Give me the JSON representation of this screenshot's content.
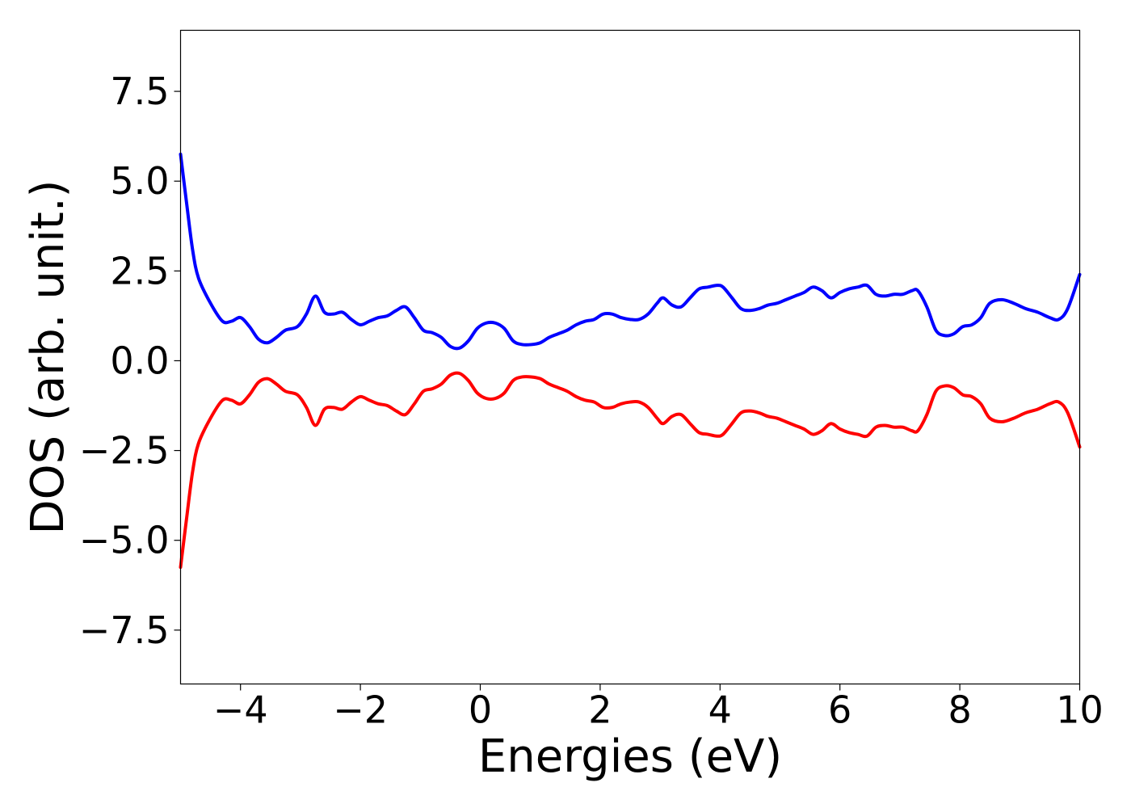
{
  "chart_data": {
    "type": "line",
    "title": "",
    "xlabel": "Energies (eV)",
    "ylabel": "DOS (arb. unit.)",
    "xlim": [
      -5,
      10
    ],
    "ylim": [
      -9,
      9.2
    ],
    "grid": false,
    "xticks": [
      -4,
      -2,
      0,
      2,
      4,
      6,
      8,
      10
    ],
    "xtick_labels": [
      "−4",
      "−2",
      "0",
      "2",
      "4",
      "6",
      "8",
      "10"
    ],
    "yticks": [
      -7.5,
      -5.0,
      -2.5,
      0.0,
      2.5,
      5.0,
      7.5
    ],
    "ytick_labels": [
      "−7.5",
      "−5.0",
      "−2.5",
      "0.0",
      "2.5",
      "5.0",
      "7.5"
    ],
    "series": [
      {
        "color": "#0000ff",
        "x": [
          -5.0,
          -4.9,
          -4.8,
          -4.7,
          -4.5,
          -4.3,
          -4.15,
          -4.0,
          -3.85,
          -3.7,
          -3.55,
          -3.4,
          -3.25,
          -3.05,
          -2.9,
          -2.75,
          -2.6,
          -2.45,
          -2.3,
          -2.15,
          -2.0,
          -1.85,
          -1.7,
          -1.55,
          -1.4,
          -1.25,
          -1.1,
          -0.95,
          -0.8,
          -0.65,
          -0.5,
          -0.35,
          -0.2,
          -0.05,
          0.1,
          0.25,
          0.4,
          0.55,
          0.7,
          0.85,
          1.0,
          1.15,
          1.3,
          1.45,
          1.6,
          1.75,
          1.9,
          2.05,
          2.2,
          2.35,
          2.5,
          2.65,
          2.8,
          2.95,
          3.05,
          3.2,
          3.35,
          3.5,
          3.65,
          3.8,
          3.95,
          4.05,
          4.2,
          4.35,
          4.5,
          4.65,
          4.8,
          4.95,
          5.1,
          5.25,
          5.4,
          5.55,
          5.7,
          5.85,
          6.0,
          6.15,
          6.3,
          6.45,
          6.6,
          6.75,
          6.9,
          7.05,
          7.2,
          7.3,
          7.45,
          7.6,
          7.75,
          7.9,
          8.05,
          8.2,
          8.35,
          8.5,
          8.7,
          8.9,
          9.1,
          9.3,
          9.5,
          9.65,
          9.8,
          10.0
        ],
        "y": [
          5.75,
          4.4,
          3.1,
          2.3,
          1.6,
          1.1,
          1.1,
          1.2,
          0.95,
          0.6,
          0.5,
          0.65,
          0.85,
          0.95,
          1.3,
          1.8,
          1.35,
          1.3,
          1.35,
          1.15,
          1.0,
          1.1,
          1.2,
          1.25,
          1.4,
          1.5,
          1.2,
          0.85,
          0.78,
          0.65,
          0.4,
          0.35,
          0.55,
          0.9,
          1.05,
          1.05,
          0.9,
          0.55,
          0.45,
          0.45,
          0.5,
          0.65,
          0.75,
          0.85,
          1.0,
          1.1,
          1.15,
          1.3,
          1.3,
          1.2,
          1.15,
          1.15,
          1.3,
          1.6,
          1.75,
          1.55,
          1.5,
          1.75,
          2.0,
          2.05,
          2.1,
          2.05,
          1.75,
          1.45,
          1.4,
          1.45,
          1.55,
          1.6,
          1.7,
          1.8,
          1.9,
          2.05,
          1.95,
          1.75,
          1.9,
          2.0,
          2.05,
          2.1,
          1.85,
          1.8,
          1.85,
          1.85,
          1.95,
          1.95,
          1.5,
          0.85,
          0.7,
          0.75,
          0.95,
          1.0,
          1.2,
          1.6,
          1.7,
          1.6,
          1.45,
          1.35,
          1.2,
          1.15,
          1.45,
          2.4
        ]
      },
      {
        "color": "#ff0000",
        "x": [
          -5.0,
          -4.9,
          -4.8,
          -4.7,
          -4.5,
          -4.3,
          -4.15,
          -4.0,
          -3.85,
          -3.7,
          -3.55,
          -3.4,
          -3.25,
          -3.05,
          -2.9,
          -2.75,
          -2.6,
          -2.45,
          -2.3,
          -2.15,
          -2.0,
          -1.85,
          -1.7,
          -1.55,
          -1.4,
          -1.25,
          -1.1,
          -0.95,
          -0.8,
          -0.65,
          -0.5,
          -0.35,
          -0.2,
          -0.05,
          0.1,
          0.25,
          0.4,
          0.55,
          0.7,
          0.85,
          1.0,
          1.15,
          1.3,
          1.45,
          1.6,
          1.75,
          1.9,
          2.05,
          2.2,
          2.35,
          2.5,
          2.65,
          2.8,
          2.95,
          3.05,
          3.2,
          3.35,
          3.5,
          3.65,
          3.8,
          3.95,
          4.05,
          4.2,
          4.35,
          4.5,
          4.65,
          4.8,
          4.95,
          5.1,
          5.25,
          5.4,
          5.55,
          5.7,
          5.85,
          6.0,
          6.15,
          6.3,
          6.45,
          6.6,
          6.75,
          6.9,
          7.05,
          7.2,
          7.3,
          7.45,
          7.6,
          7.75,
          7.9,
          8.05,
          8.2,
          8.35,
          8.5,
          8.7,
          8.9,
          9.1,
          9.3,
          9.5,
          9.65,
          9.8,
          10.0
        ],
        "y": [
          -5.75,
          -4.4,
          -3.1,
          -2.3,
          -1.6,
          -1.1,
          -1.1,
          -1.2,
          -0.95,
          -0.6,
          -0.5,
          -0.65,
          -0.85,
          -0.95,
          -1.3,
          -1.8,
          -1.35,
          -1.3,
          -1.35,
          -1.15,
          -1.0,
          -1.1,
          -1.2,
          -1.25,
          -1.4,
          -1.5,
          -1.2,
          -0.85,
          -0.78,
          -0.65,
          -0.4,
          -0.35,
          -0.55,
          -0.9,
          -1.05,
          -1.05,
          -0.9,
          -0.55,
          -0.45,
          -0.45,
          -0.5,
          -0.65,
          -0.75,
          -0.85,
          -1.0,
          -1.1,
          -1.15,
          -1.3,
          -1.3,
          -1.2,
          -1.15,
          -1.15,
          -1.3,
          -1.6,
          -1.75,
          -1.55,
          -1.5,
          -1.75,
          -2.0,
          -2.05,
          -2.1,
          -2.05,
          -1.75,
          -1.45,
          -1.4,
          -1.45,
          -1.55,
          -1.6,
          -1.7,
          -1.8,
          -1.9,
          -2.05,
          -1.95,
          -1.75,
          -1.9,
          -2.0,
          -2.05,
          -2.1,
          -1.85,
          -1.8,
          -1.85,
          -1.85,
          -1.95,
          -1.95,
          -1.5,
          -0.85,
          -0.7,
          -0.75,
          -0.95,
          -1.0,
          -1.2,
          -1.6,
          -1.7,
          -1.6,
          -1.45,
          -1.35,
          -1.2,
          -1.15,
          -1.45,
          -2.4
        ]
      }
    ]
  }
}
